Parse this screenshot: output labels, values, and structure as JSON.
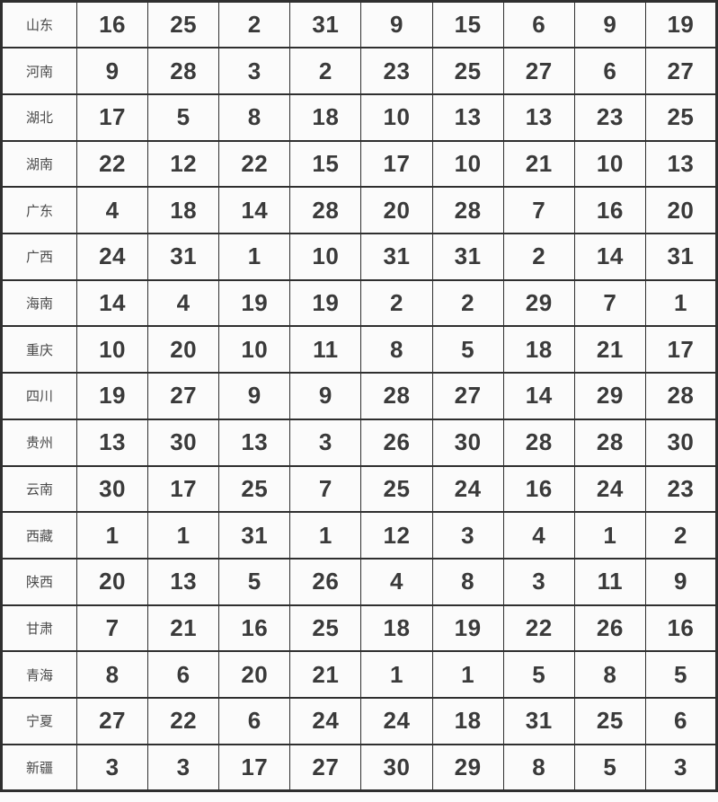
{
  "colors": {
    "border": "#2f2f2f",
    "text": "#3a3a3a",
    "label": "#4a4a4a",
    "background": "#fbfbfb"
  },
  "table": {
    "num_value_columns": 9,
    "rows": [
      {
        "label": "山东",
        "values": [
          16,
          25,
          2,
          31,
          9,
          15,
          6,
          9,
          19
        ]
      },
      {
        "label": "河南",
        "values": [
          9,
          28,
          3,
          2,
          23,
          25,
          27,
          6,
          27
        ]
      },
      {
        "label": "湖北",
        "values": [
          17,
          5,
          8,
          18,
          10,
          13,
          13,
          23,
          25
        ]
      },
      {
        "label": "湖南",
        "values": [
          22,
          12,
          22,
          15,
          17,
          10,
          21,
          10,
          13
        ]
      },
      {
        "label": "广东",
        "values": [
          4,
          18,
          14,
          28,
          20,
          28,
          7,
          16,
          20
        ]
      },
      {
        "label": "广西",
        "values": [
          24,
          31,
          1,
          10,
          31,
          31,
          2,
          14,
          31
        ]
      },
      {
        "label": "海南",
        "values": [
          14,
          4,
          19,
          19,
          2,
          2,
          29,
          7,
          1
        ]
      },
      {
        "label": "重庆",
        "values": [
          10,
          20,
          10,
          11,
          8,
          5,
          18,
          21,
          17
        ]
      },
      {
        "label": "四川",
        "values": [
          19,
          27,
          9,
          9,
          28,
          27,
          14,
          29,
          28
        ]
      },
      {
        "label": "贵州",
        "values": [
          13,
          30,
          13,
          3,
          26,
          30,
          28,
          28,
          30
        ]
      },
      {
        "label": "云南",
        "values": [
          30,
          17,
          25,
          7,
          25,
          24,
          16,
          24,
          23
        ]
      },
      {
        "label": "西藏",
        "values": [
          1,
          1,
          31,
          1,
          12,
          3,
          4,
          1,
          2
        ]
      },
      {
        "label": "陕西",
        "values": [
          20,
          13,
          5,
          26,
          4,
          8,
          3,
          11,
          9
        ]
      },
      {
        "label": "甘肃",
        "values": [
          7,
          21,
          16,
          25,
          18,
          19,
          22,
          26,
          16
        ]
      },
      {
        "label": "青海",
        "values": [
          8,
          6,
          20,
          21,
          1,
          1,
          5,
          8,
          5
        ]
      },
      {
        "label": "宁夏",
        "values": [
          27,
          22,
          6,
          24,
          24,
          18,
          31,
          25,
          6
        ]
      },
      {
        "label": "新疆",
        "values": [
          3,
          3,
          17,
          27,
          30,
          29,
          8,
          5,
          3
        ]
      }
    ]
  }
}
